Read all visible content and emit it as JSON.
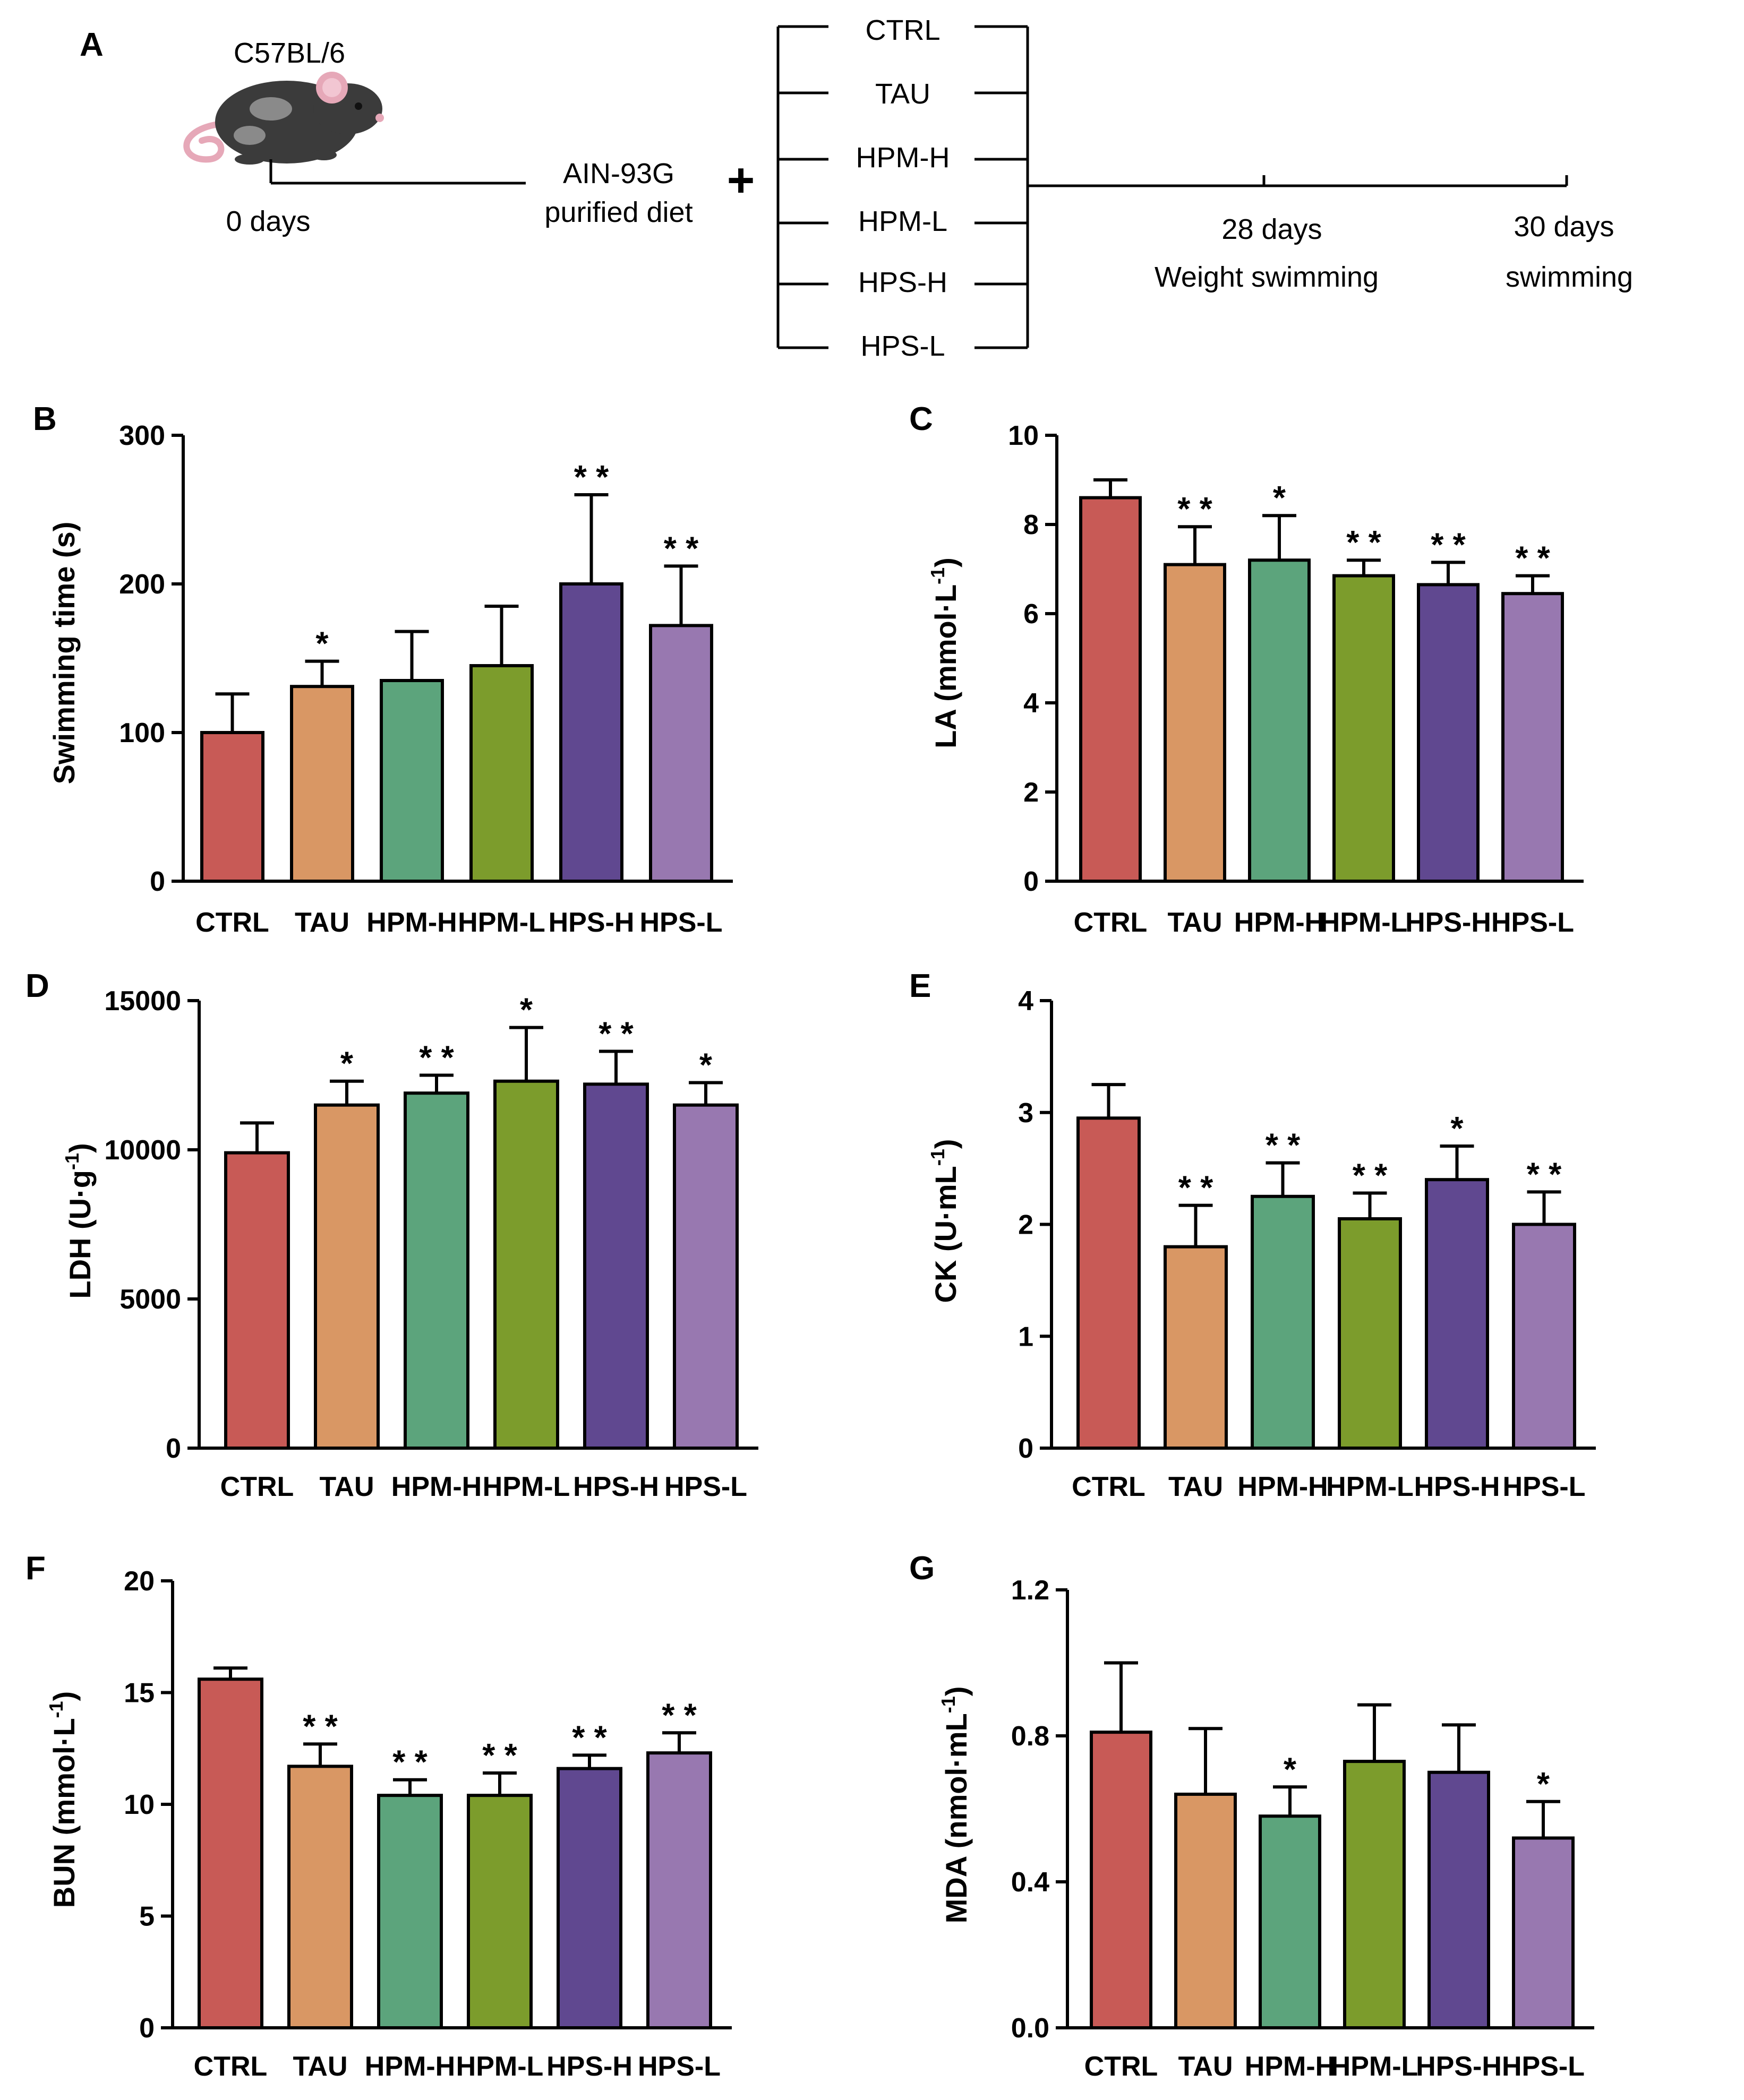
{
  "colors": [
    "#c85a56",
    "#d99764",
    "#5ca47c",
    "#7c9c2c",
    "#604890",
    "#9878b0"
  ],
  "schematic": {
    "panel_label": "A",
    "strain": "C57BL/6",
    "day0": "0 days",
    "diet_line1": "AIN-93G",
    "diet_line2": "purified diet",
    "plus": "+",
    "groups": [
      "CTRL",
      "TAU",
      "HPM-H",
      "HPM-L",
      "HPS-H",
      "HPS-L"
    ],
    "t1_line1": "28 days",
    "t1_line2": "Weight swimming",
    "t2_line1": "30 days",
    "t2_line2": "swimming"
  },
  "chart_data": [
    {
      "panel": "B",
      "type": "bar",
      "categories": [
        "CTRL",
        "TAU",
        "HPM-H",
        "HPM-L",
        "HPS-H",
        "HPS-L"
      ],
      "values": [
        100,
        131,
        135,
        145,
        200,
        172
      ],
      "errors": [
        26,
        17,
        33,
        40,
        60,
        40
      ],
      "significance": [
        "",
        "*",
        "",
        "",
        "**",
        "**"
      ],
      "ylabel_main": "Swimming time (s)",
      "ylabel_sup": "",
      "ylabel_end": "",
      "ylim": [
        0,
        300
      ],
      "yticks": [
        "0",
        "100",
        "200",
        "300"
      ]
    },
    {
      "panel": "C",
      "type": "bar",
      "categories": [
        "CTRL",
        "TAU",
        "HPM-H",
        "HPM-L",
        "HPS-H",
        "HPS-L"
      ],
      "values": [
        8.6,
        7.1,
        7.2,
        6.85,
        6.65,
        6.45
      ],
      "errors": [
        0.4,
        0.85,
        1.0,
        0.35,
        0.5,
        0.4
      ],
      "significance": [
        "",
        "**",
        "*",
        "**",
        "**",
        "**"
      ],
      "ylabel_main": "LA (mmol·L",
      "ylabel_sup": "-1",
      "ylabel_end": ")",
      "ylim": [
        0,
        10
      ],
      "yticks": [
        "0",
        "2",
        "4",
        "6",
        "8",
        "10"
      ]
    },
    {
      "panel": "D",
      "type": "bar",
      "categories": [
        "CTRL",
        "TAU",
        "HPM-H",
        "HPM-L",
        "HPS-H",
        "HPS-L"
      ],
      "values": [
        9900,
        11500,
        11900,
        12300,
        12200,
        11500
      ],
      "errors": [
        1000,
        800,
        600,
        1800,
        1100,
        750
      ],
      "significance": [
        "",
        "*",
        "**",
        "*",
        "**",
        "*"
      ],
      "ylabel_main": "LDH (U·g",
      "ylabel_sup": "-1",
      "ylabel_end": ")",
      "ylim": [
        0,
        15000
      ],
      "yticks": [
        "0",
        "5000",
        "10000",
        "15000"
      ]
    },
    {
      "panel": "E",
      "type": "bar",
      "categories": [
        "CTRL",
        "TAU",
        "HPM-H",
        "HPM-L",
        "HPS-H",
        "HPS-L"
      ],
      "values": [
        2.95,
        1.8,
        2.25,
        2.05,
        2.4,
        2.0
      ],
      "errors": [
        0.3,
        0.37,
        0.3,
        0.23,
        0.3,
        0.29
      ],
      "significance": [
        "",
        "**",
        "**",
        "**",
        "*",
        "**"
      ],
      "ylabel_main": "CK (U·mL",
      "ylabel_sup": "-1",
      "ylabel_end": ")",
      "ylim": [
        0,
        4
      ],
      "yticks": [
        "0",
        "1",
        "2",
        "3",
        "4"
      ]
    },
    {
      "panel": "F",
      "type": "bar",
      "categories": [
        "CTRL",
        "TAU",
        "HPM-H",
        "HPM-L",
        "HPS-H",
        "HPS-L"
      ],
      "values": [
        15.6,
        11.7,
        10.4,
        10.4,
        11.6,
        12.3
      ],
      "errors": [
        0.5,
        1.0,
        0.7,
        1.0,
        0.6,
        0.9
      ],
      "significance": [
        "",
        "**",
        "**",
        "**",
        "**",
        "**"
      ],
      "ylabel_main": "BUN (mmol·L",
      "ylabel_sup": "-1",
      "ylabel_end": ")",
      "ylim": [
        0,
        20
      ],
      "yticks": [
        "0",
        "5",
        "10",
        "15",
        "20"
      ]
    },
    {
      "panel": "G",
      "type": "bar",
      "categories": [
        "CTRL",
        "TAU",
        "HPM-H",
        "HPM-L",
        "HPS-H",
        "HPS-L"
      ],
      "values": [
        0.81,
        0.64,
        0.58,
        0.73,
        0.7,
        0.52
      ],
      "errors": [
        0.19,
        0.18,
        0.08,
        0.155,
        0.13,
        0.1
      ],
      "significance": [
        "",
        "",
        "*",
        "",
        "",
        "*"
      ],
      "ylabel_main": "MDA (nmol·mL",
      "ylabel_sup": "-1",
      "ylabel_end": ")",
      "ylim": [
        0,
        1.2
      ],
      "yticks": [
        "0.0",
        "0.4",
        "0.8",
        "1.2"
      ]
    }
  ]
}
